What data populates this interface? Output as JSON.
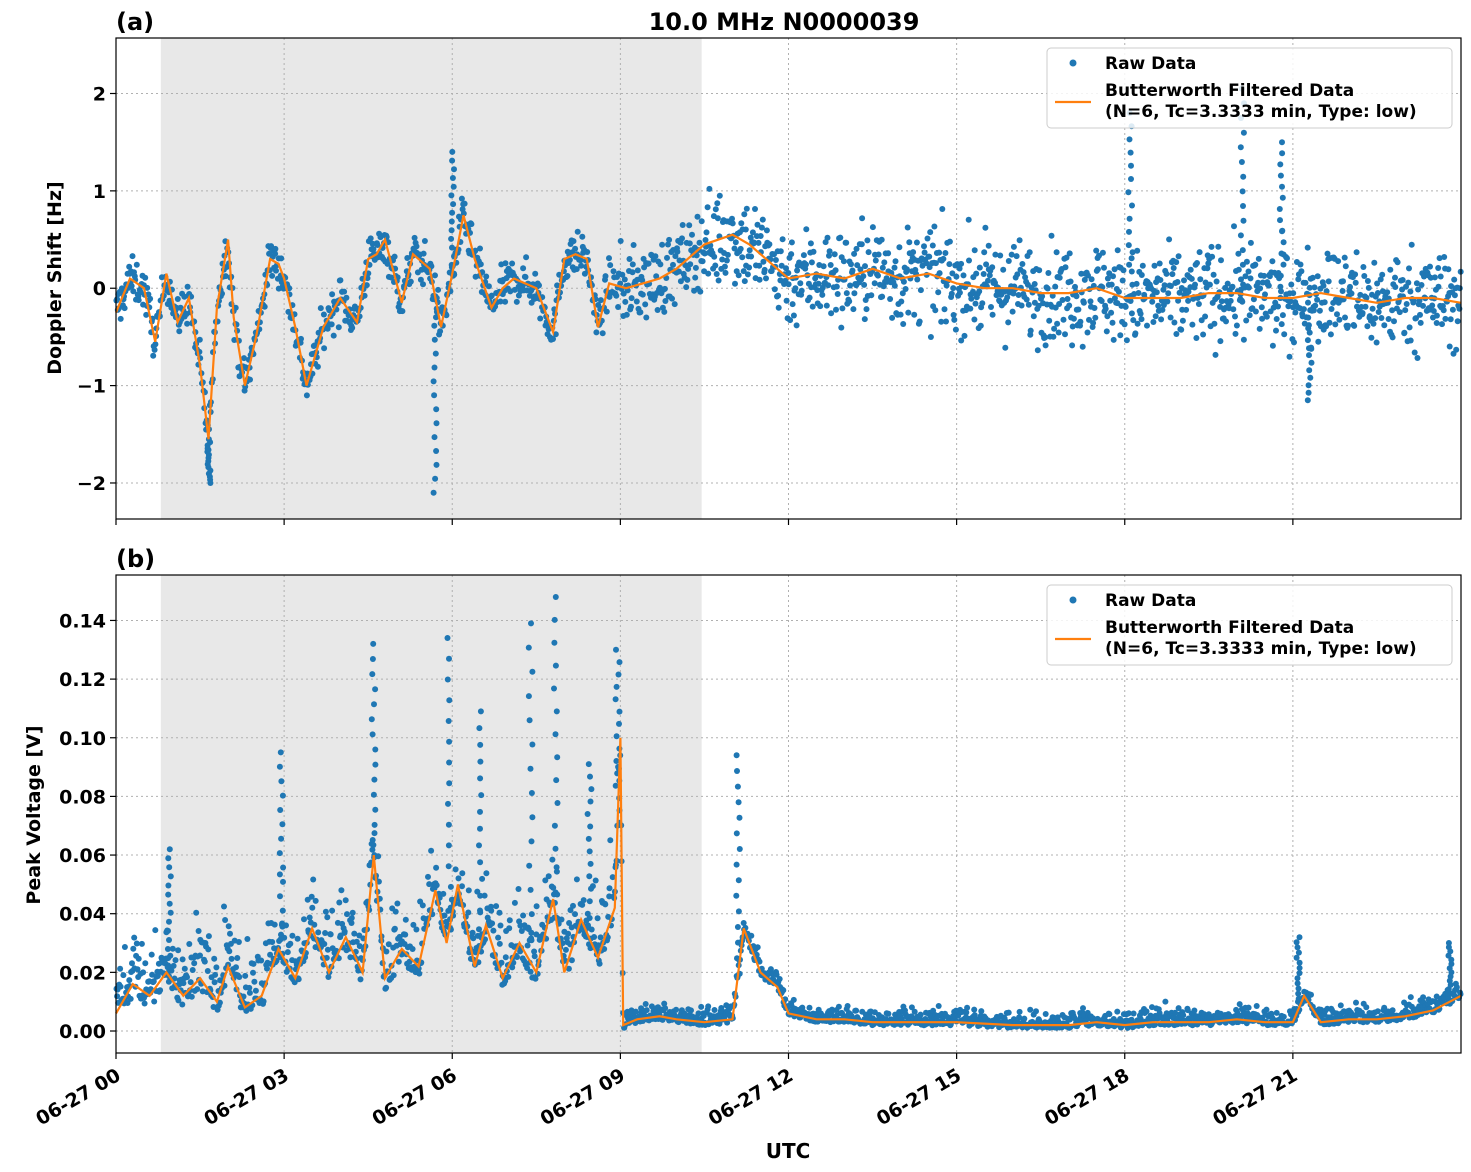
{
  "figure": {
    "title": "10.0 MHz N0000039",
    "xlabel": "UTC",
    "x_ticks": [
      "06-27 00",
      "06-27 03",
      "06-27 06",
      "06-27 09",
      "06-27 12",
      "06-27 15",
      "06-27 18",
      "06-27 21"
    ],
    "shaded_interval_hours": [
      0.8,
      10.45
    ],
    "colors": {
      "raw": "#1f77b4",
      "filtered": "#ff7f0e",
      "shade": "#e8e8e8",
      "grid": "#b0b0b0"
    }
  },
  "legend": {
    "raw_label": "Raw Data",
    "filtered_label_line1": "Butterworth Filtered Data",
    "filtered_label_line2": "(N=6, Tc=3.3333 min, Type: low)"
  },
  "chart_data": [
    {
      "type": "scatter",
      "panel_label": "(a)",
      "ylabel": "Doppler Shift [Hz]",
      "xlim_hours": [
        0,
        24
      ],
      "ylim": [
        -2.37,
        2.57
      ],
      "y_ticks": [
        "2",
        "1",
        "0",
        "−1",
        "−2"
      ],
      "y_tick_values": [
        2,
        1,
        0,
        -1,
        -2
      ],
      "grid": true,
      "legend_position": "top-right",
      "series": [
        {
          "name": "Butterworth Filtered Data (N=6, Tc=3.3333 min, Type: low)",
          "x_hours": [
            0,
            0.25,
            0.5,
            0.7,
            0.9,
            1.1,
            1.3,
            1.5,
            1.65,
            1.8,
            2.0,
            2.1,
            2.3,
            2.5,
            2.75,
            2.9,
            3.0,
            3.2,
            3.4,
            3.7,
            4.0,
            4.3,
            4.5,
            4.65,
            4.8,
            5.1,
            5.3,
            5.6,
            5.8,
            6.0,
            6.2,
            6.4,
            6.7,
            6.9,
            7.1,
            7.3,
            7.5,
            7.8,
            8.0,
            8.2,
            8.4,
            8.6,
            8.8,
            9.1,
            9.4,
            9.7,
            10.0,
            10.5,
            11.0,
            11.3,
            11.7,
            12.0,
            12.5,
            13.0,
            13.5,
            14.0,
            14.5,
            15.0,
            15.5,
            16.0,
            16.5,
            17.0,
            17.5,
            18.0,
            18.5,
            19.0,
            19.5,
            20.0,
            20.5,
            21.0,
            21.5,
            22.0,
            22.5,
            23.0,
            23.5,
            24.0
          ],
          "y": [
            -0.25,
            0.1,
            0.0,
            -0.55,
            0.15,
            -0.35,
            -0.1,
            -0.8,
            -1.55,
            -0.2,
            0.5,
            -0.3,
            -1.0,
            -0.5,
            0.3,
            0.25,
            0.1,
            -0.4,
            -1.0,
            -0.4,
            -0.1,
            -0.35,
            0.3,
            0.35,
            0.5,
            -0.15,
            0.35,
            0.2,
            -0.4,
            0.15,
            0.75,
            0.3,
            -0.2,
            0.0,
            0.1,
            0.05,
            0.0,
            -0.45,
            0.3,
            0.35,
            0.3,
            -0.4,
            0.05,
            0.0,
            0.05,
            0.1,
            0.2,
            0.45,
            0.55,
            0.45,
            0.25,
            0.1,
            0.15,
            0.1,
            0.2,
            0.1,
            0.15,
            0.05,
            0.0,
            0.0,
            -0.05,
            -0.05,
            0.0,
            -0.1,
            -0.1,
            -0.1,
            -0.05,
            -0.05,
            -0.1,
            -0.1,
            -0.05,
            -0.1,
            -0.15,
            -0.1,
            -0.1,
            -0.15
          ]
        },
        {
          "name": "Raw Data",
          "spread_regions": [
            {
              "from_hour": 0,
              "to_hour": 9,
              "scatter_hz": 0.2
            },
            {
              "from_hour": 9,
              "to_hour": 10.5,
              "scatter_hz": 0.35
            },
            {
              "from_hour": 10.5,
              "to_hour": 24,
              "scatter_hz": 0.45
            }
          ],
          "notable_extremes": [
            {
              "x_hour": 1.65,
              "y": -2.0
            },
            {
              "x_hour": 5.7,
              "y": -2.1
            },
            {
              "x_hour": 6.0,
              "y": 1.4
            },
            {
              "x_hour": 18.1,
              "y": 1.8
            },
            {
              "x_hour": 20.1,
              "y": 2.05
            },
            {
              "x_hour": 20.8,
              "y": 1.5
            },
            {
              "x_hour": 21.3,
              "y": -1.15
            }
          ]
        }
      ]
    },
    {
      "type": "scatter",
      "panel_label": "(b)",
      "ylabel": "Peak Voltage [V]",
      "xlim_hours": [
        0,
        24
      ],
      "ylim": [
        -0.0075,
        0.1555
      ],
      "y_ticks": [
        "0.14",
        "0.12",
        "0.10",
        "0.08",
        "0.06",
        "0.04",
        "0.02",
        "0.00"
      ],
      "y_tick_values": [
        0.14,
        0.12,
        0.1,
        0.08,
        0.06,
        0.04,
        0.02,
        0.0
      ],
      "grid": true,
      "legend_position": "top-right",
      "series": [
        {
          "name": "Butterworth Filtered Data (N=6, Tc=3.3333 min, Type: low)",
          "x_hours": [
            0,
            0.3,
            0.6,
            0.9,
            1.2,
            1.5,
            1.8,
            2.0,
            2.3,
            2.6,
            2.9,
            3.2,
            3.5,
            3.8,
            4.1,
            4.4,
            4.6,
            4.8,
            5.1,
            5.4,
            5.7,
            5.9,
            6.1,
            6.4,
            6.6,
            6.9,
            7.2,
            7.5,
            7.8,
            8.0,
            8.3,
            8.6,
            8.9,
            9.0,
            9.05,
            9.3,
            9.7,
            10.0,
            10.5,
            11.0,
            11.2,
            11.5,
            11.8,
            12.0,
            12.5,
            13.0,
            13.5,
            14.0,
            15.0,
            16.0,
            17.0,
            17.5,
            18.0,
            18.5,
            19.0,
            19.5,
            20.0,
            20.5,
            21.0,
            21.2,
            21.5,
            22.0,
            22.5,
            23.0,
            23.5,
            24.0
          ],
          "y": [
            0.006,
            0.016,
            0.012,
            0.02,
            0.012,
            0.018,
            0.01,
            0.022,
            0.008,
            0.012,
            0.028,
            0.018,
            0.035,
            0.02,
            0.032,
            0.02,
            0.06,
            0.018,
            0.028,
            0.022,
            0.048,
            0.03,
            0.05,
            0.022,
            0.036,
            0.018,
            0.03,
            0.02,
            0.045,
            0.02,
            0.038,
            0.025,
            0.042,
            0.1,
            0.002,
            0.004,
            0.005,
            0.004,
            0.003,
            0.004,
            0.035,
            0.02,
            0.015,
            0.006,
            0.004,
            0.004,
            0.003,
            0.003,
            0.003,
            0.002,
            0.002,
            0.003,
            0.002,
            0.003,
            0.003,
            0.003,
            0.004,
            0.003,
            0.003,
            0.012,
            0.003,
            0.004,
            0.004,
            0.005,
            0.007,
            0.012
          ]
        },
        {
          "name": "Raw Data",
          "spread_regions": [
            {
              "from_hour": 0,
              "to_hour": 9,
              "scatter_v": 0.012
            },
            {
              "from_hour": 9,
              "to_hour": 24,
              "scatter_v": 0.003
            }
          ],
          "spikes": [
            {
              "x_hour": 0.95,
              "y": 0.062
            },
            {
              "x_hour": 2.95,
              "y": 0.095
            },
            {
              "x_hour": 4.6,
              "y": 0.132
            },
            {
              "x_hour": 5.95,
              "y": 0.134
            },
            {
              "x_hour": 6.5,
              "y": 0.109
            },
            {
              "x_hour": 7.4,
              "y": 0.139
            },
            {
              "x_hour": 7.85,
              "y": 0.148
            },
            {
              "x_hour": 8.45,
              "y": 0.091
            },
            {
              "x_hour": 8.95,
              "y": 0.13
            },
            {
              "x_hour": 11.1,
              "y": 0.094
            },
            {
              "x_hour": 21.1,
              "y": 0.032
            },
            {
              "x_hour": 23.8,
              "y": 0.03
            }
          ]
        }
      ]
    }
  ]
}
